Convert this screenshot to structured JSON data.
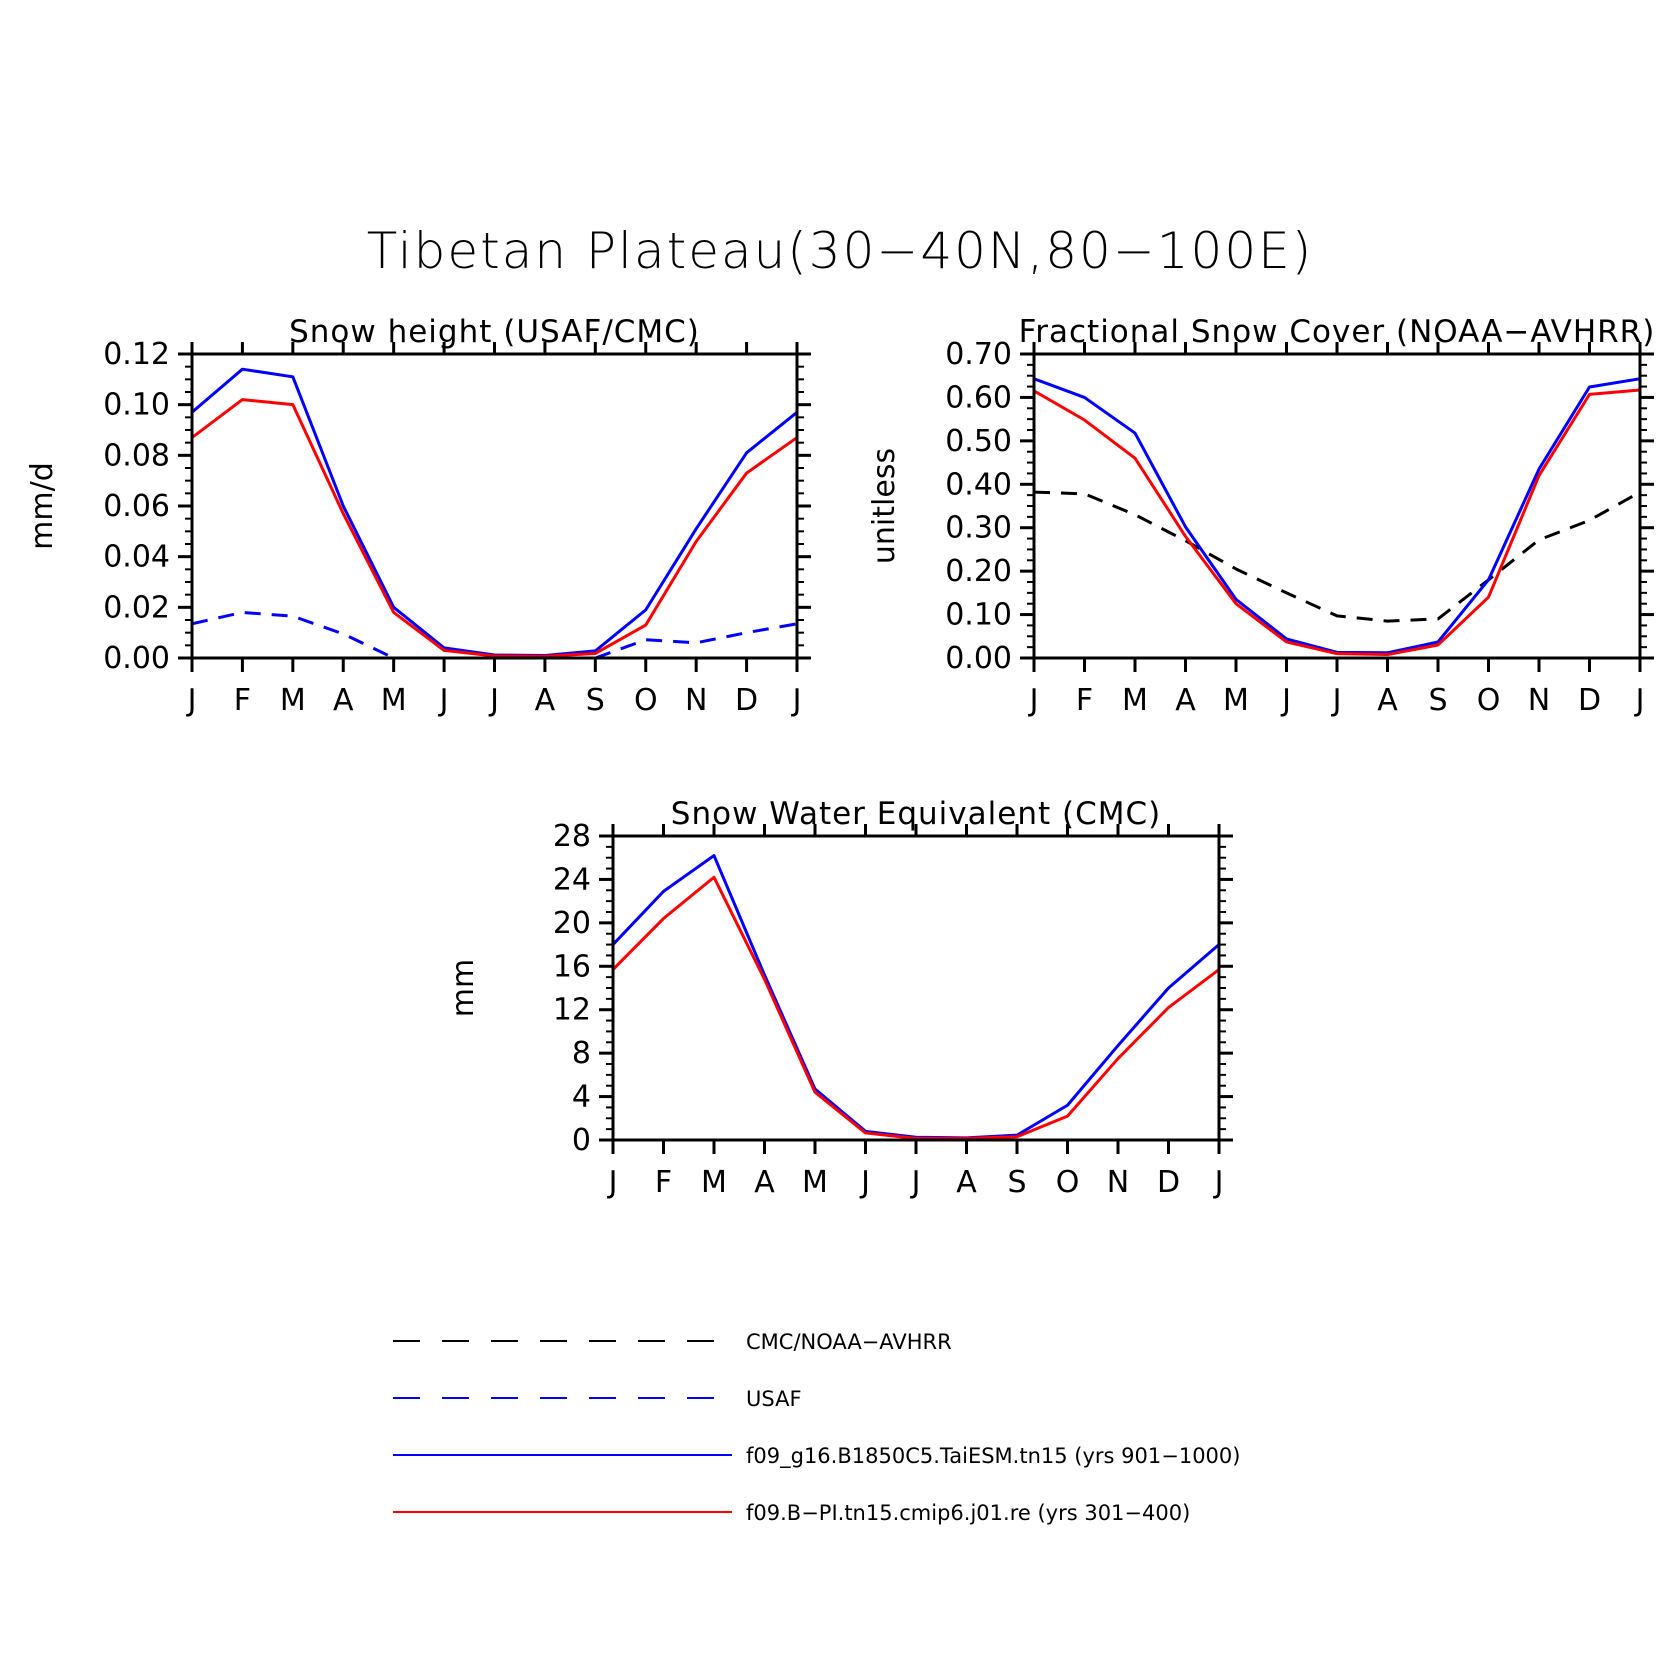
{
  "title": "Tibetan Plateau(30−40N,80−100E)",
  "chart_data": [
    {
      "type": "line",
      "title": "Snow height (USAF/CMC)",
      "ylabel": "mm/d",
      "ylim": [
        0,
        0.12
      ],
      "yticks": [
        "0.00",
        "0.02",
        "0.04",
        "0.06",
        "0.08",
        "0.10",
        "0.12"
      ],
      "categories": [
        "J",
        "F",
        "M",
        "A",
        "M",
        "J",
        "J",
        "A",
        "S",
        "O",
        "N",
        "D",
        "J"
      ],
      "series": [
        {
          "name": "CMC/NOAA−AVHRR",
          "color": "#000000",
          "dash": true,
          "values": [
            0.0,
            0.0,
            0.0,
            0.0,
            0.0,
            0.0,
            0.0,
            0.0,
            0.0,
            0.0,
            0.0,
            0.0,
            0.0
          ]
        },
        {
          "name": "USAF",
          "color": "#0000ff",
          "dash": true,
          "values": [
            0.0135,
            0.018,
            0.0165,
            0.0095,
            0.0,
            null,
            null,
            null,
            0.0,
            0.0072,
            0.006,
            0.01,
            0.0135
          ]
        },
        {
          "name": "f09_g16.B1850C5.TaiESM.tn15 (yrs 901−1000)",
          "color": "#0000ff",
          "dash": false,
          "values": [
            0.097,
            0.114,
            0.111,
            0.06,
            0.02,
            0.004,
            0.0012,
            0.001,
            0.0028,
            0.019,
            0.051,
            0.081,
            0.097
          ]
        },
        {
          "name": "f09.B−PI.tn15.cmip6.j01.re (yrs 301−400)",
          "color": "#ff0000",
          "dash": false,
          "values": [
            0.087,
            0.102,
            0.1,
            0.057,
            0.018,
            0.003,
            0.0008,
            0.0007,
            0.0018,
            0.013,
            0.046,
            0.073,
            0.087
          ]
        }
      ]
    },
    {
      "type": "line",
      "title": "Fractional Snow Cover (NOAA−AVHRR)",
      "ylabel": "unitless",
      "ylim": [
        0,
        0.7
      ],
      "yticks": [
        "0.00",
        "0.10",
        "0.20",
        "0.30",
        "0.40",
        "0.50",
        "0.60",
        "0.70"
      ],
      "categories": [
        "J",
        "F",
        "M",
        "A",
        "M",
        "J",
        "J",
        "A",
        "S",
        "O",
        "N",
        "D",
        "J"
      ],
      "series": [
        {
          "name": "CMC/NOAA−AVHRR",
          "color": "#000000",
          "dash": true,
          "values": [
            0.382,
            0.378,
            0.33,
            0.27,
            0.205,
            0.15,
            0.097,
            0.085,
            0.09,
            0.18,
            0.272,
            0.317,
            0.382
          ]
        },
        {
          "name": "f09_g16.B1850C5.TaiESM.tn15 (yrs 901−1000)",
          "color": "#0000ff",
          "dash": false,
          "values": [
            0.643,
            0.6,
            0.518,
            0.302,
            0.135,
            0.044,
            0.013,
            0.012,
            0.037,
            0.18,
            0.435,
            0.624,
            0.643
          ]
        },
        {
          "name": "f09.B−PI.tn15.cmip6.j01.re (yrs 301−400)",
          "color": "#ff0000",
          "dash": false,
          "values": [
            0.615,
            0.548,
            0.46,
            0.28,
            0.125,
            0.037,
            0.01,
            0.008,
            0.03,
            0.14,
            0.42,
            0.607,
            0.617
          ]
        }
      ]
    },
    {
      "type": "line",
      "title": "Snow Water Equivalent (CMC)",
      "ylabel": "mm",
      "ylim": [
        0,
        28
      ],
      "yticks": [
        "0",
        "4",
        "8",
        "12",
        "16",
        "20",
        "24",
        "28"
      ],
      "categories": [
        "J",
        "F",
        "M",
        "A",
        "M",
        "J",
        "J",
        "A",
        "S",
        "O",
        "N",
        "D",
        "J"
      ],
      "series": [
        {
          "name": "CMC/NOAA−AVHRR",
          "color": "#000000",
          "dash": true,
          "values": [
            0,
            0,
            0,
            0,
            0,
            0,
            0,
            0,
            0,
            0,
            0,
            0,
            0
          ]
        },
        {
          "name": "f09_g16.B1850C5.TaiESM.tn15 (yrs 901−1000)",
          "color": "#0000ff",
          "dash": false,
          "values": [
            18.0,
            22.9,
            26.2,
            15.2,
            4.7,
            0.8,
            0.25,
            0.2,
            0.45,
            3.2,
            8.7,
            14.0,
            18.0
          ]
        },
        {
          "name": "f09.B−PI.tn15.cmip6.j01.re (yrs 301−400)",
          "color": "#ff0000",
          "dash": false,
          "values": [
            15.7,
            20.4,
            24.2,
            14.8,
            4.4,
            0.65,
            0.15,
            0.15,
            0.3,
            2.2,
            7.5,
            12.2,
            15.7
          ]
        }
      ]
    }
  ],
  "legend": {
    "entries": [
      {
        "label": "CMC/NOAA−AVHRR",
        "color": "#000000",
        "dash": true
      },
      {
        "label": "USAF",
        "color": "#0000ff",
        "dash": true
      },
      {
        "label": "f09_g16.B1850C5.TaiESM.tn15 (yrs 901−1000)",
        "color": "#0000ff",
        "dash": false
      },
      {
        "label": "f09.B−PI.tn15.cmip6.j01.re (yrs 301−400)",
        "color": "#ff0000",
        "dash": false
      }
    ]
  }
}
